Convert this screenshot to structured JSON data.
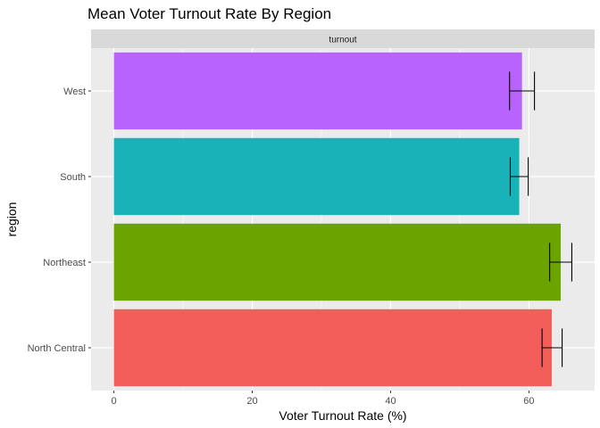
{
  "chart_data": {
    "type": "bar",
    "orientation": "horizontal",
    "title": "Mean Voter Turnout Rate By Region",
    "facet_label": "turnout",
    "xlabel": "Voter Turnout Rate (%)",
    "ylabel": "region",
    "xlim": [
      -3.3,
      69.5
    ],
    "x_ticks": [
      0,
      20,
      40,
      60
    ],
    "grid": true,
    "legend": "none",
    "categories": [
      "North Central",
      "Northeast",
      "South",
      "West"
    ],
    "values": [
      63.3,
      64.6,
      58.6,
      59.0
    ],
    "error_bars": [
      {
        "low": 61.9,
        "high": 64.8
      },
      {
        "low": 63.0,
        "high": 66.2
      },
      {
        "low": 57.3,
        "high": 59.9
      },
      {
        "low": 57.2,
        "high": 60.8
      }
    ],
    "colors": [
      "#F35E5A",
      "#6BA300",
      "#18B3B9",
      "#B963FF"
    ]
  }
}
